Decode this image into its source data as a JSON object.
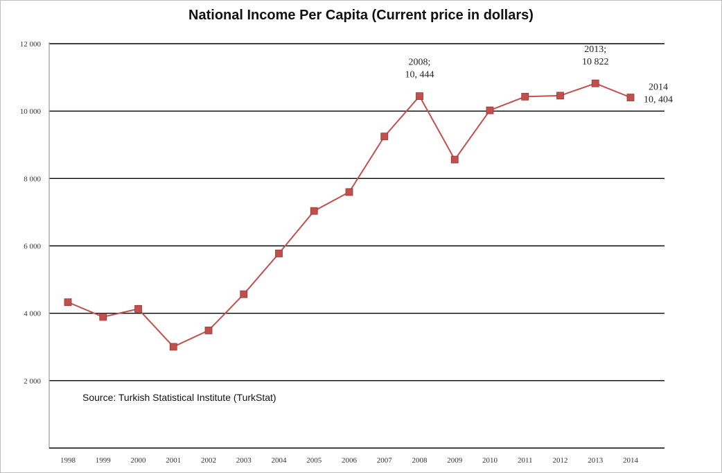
{
  "chart_data": {
    "type": "line",
    "title": "National Income Per Capita (Current price in dollars)",
    "xlabel": "",
    "ylabel": "",
    "categories": [
      "1998",
      "1999",
      "2000",
      "2001",
      "2002",
      "2003",
      "2004",
      "2005",
      "2006",
      "2007",
      "2008",
      "2009",
      "2010",
      "2011",
      "2012",
      "2013",
      "2014"
    ],
    "series": [
      {
        "values": [
          4328,
          3890,
          4130,
          3005,
          3490,
          4565,
          5775,
          7036,
          7597,
          9247,
          10444,
          8561,
          10022,
          10428,
          10459,
          10822,
          10404
        ],
        "color": "#c0504d"
      }
    ],
    "ylim": [
      0,
      12000
    ],
    "yticks": [
      2000,
      4000,
      6000,
      8000,
      10000,
      12000
    ],
    "ytick_labels": [
      "2 000",
      "4 000",
      "6 000",
      "8 000",
      "10 000",
      "12 000"
    ],
    "grid": true,
    "annotations": [
      {
        "category": "2008",
        "lines": [
          "2008;",
          "10, 444"
        ]
      },
      {
        "category": "2013",
        "lines": [
          "2013;",
          "10 822"
        ]
      },
      {
        "category": "2014",
        "lines": [
          "2014",
          "10, 404"
        ]
      }
    ],
    "source_note": "Source: Turkish Statistical Institute (TurkStat)"
  }
}
